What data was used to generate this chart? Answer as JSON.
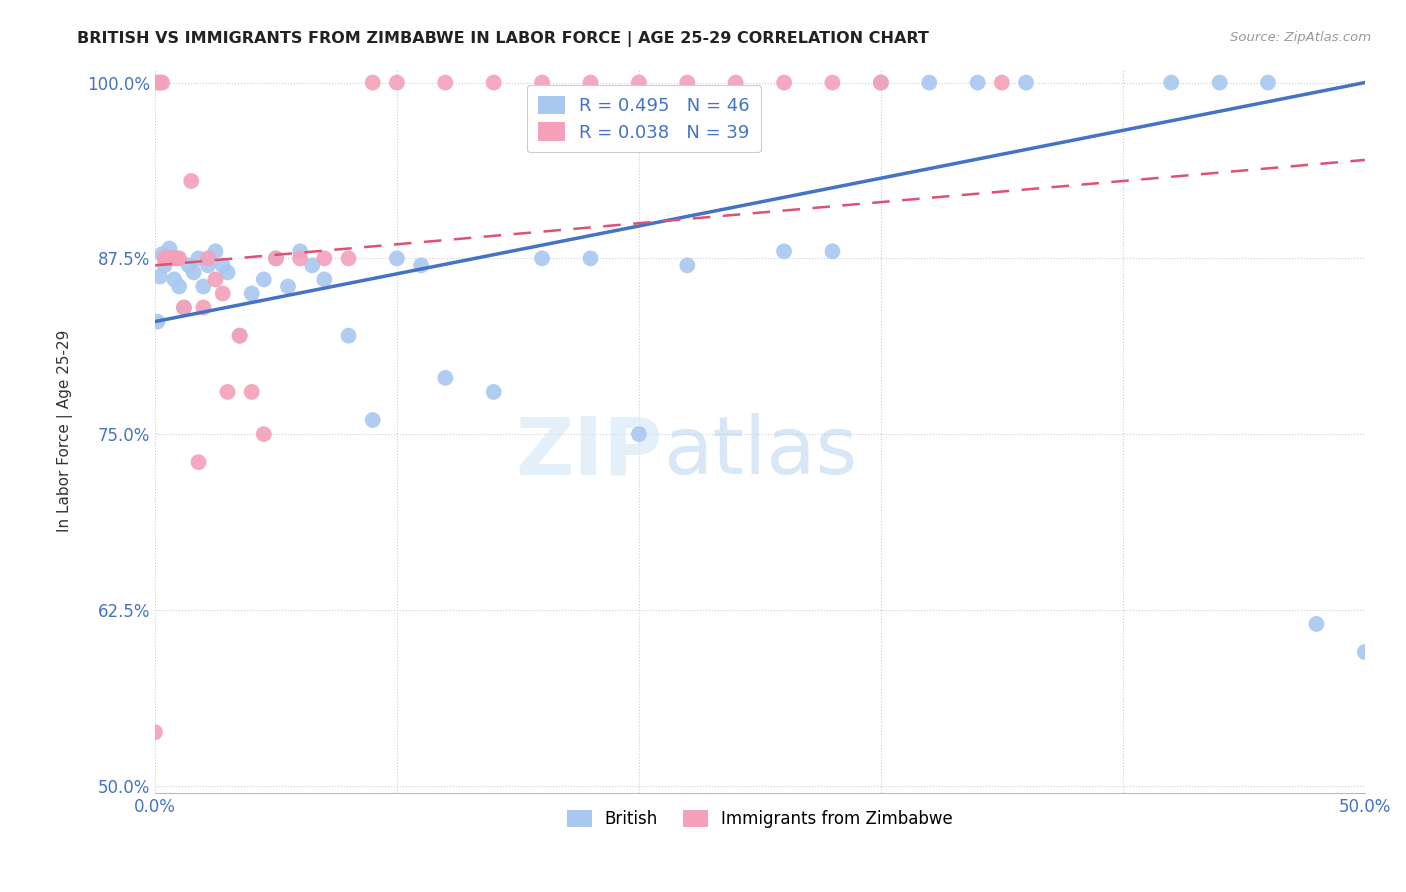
{
  "title": "BRITISH VS IMMIGRANTS FROM ZIMBABWE IN LABOR FORCE | AGE 25-29 CORRELATION CHART",
  "source": "Source: ZipAtlas.com",
  "ylabel": "In Labor Force | Age 25-29",
  "xlim": [
    0.0,
    0.5
  ],
  "ylim": [
    0.495,
    1.01
  ],
  "xticks": [
    0.0,
    0.1,
    0.2,
    0.3,
    0.4,
    0.5
  ],
  "xticklabels": [
    "0.0%",
    "",
    "",
    "",
    "",
    "50.0%"
  ],
  "yticks": [
    0.5,
    0.625,
    0.75,
    0.875,
    1.0
  ],
  "yticklabels": [
    "50.0%",
    "62.5%",
    "75.0%",
    "87.5%",
    "100.0%"
  ],
  "british_color": "#A8C8F0",
  "zimbabwe_color": "#F4A0B8",
  "british_R": 0.495,
  "british_N": 46,
  "zimbabwe_R": 0.038,
  "zimbabwe_N": 39,
  "british_line_color": "#4472C4",
  "zimbabwe_line_color": "#E05070",
  "legend_R_color": "#4472C4",
  "watermark_left": "ZIP",
  "watermark_right": "atlas",
  "british_x": [
    0.001,
    0.002,
    0.003,
    0.004,
    0.005,
    0.006,
    0.008,
    0.01,
    0.012,
    0.014,
    0.016,
    0.018,
    0.02,
    0.022,
    0.025,
    0.028,
    0.03,
    0.035,
    0.04,
    0.045,
    0.05,
    0.055,
    0.06,
    0.065,
    0.07,
    0.08,
    0.09,
    0.1,
    0.11,
    0.12,
    0.14,
    0.16,
    0.18,
    0.2,
    0.22,
    0.26,
    0.28,
    0.3,
    0.32,
    0.34,
    0.36,
    0.42,
    0.44,
    0.46,
    0.48,
    0.5
  ],
  "british_y": [
    0.83,
    0.862,
    0.878,
    0.87,
    0.875,
    0.882,
    0.86,
    0.855,
    0.84,
    0.87,
    0.865,
    0.875,
    0.855,
    0.87,
    0.88,
    0.87,
    0.865,
    0.82,
    0.85,
    0.86,
    0.875,
    0.855,
    0.88,
    0.87,
    0.86,
    0.82,
    0.76,
    0.875,
    0.87,
    0.79,
    0.78,
    0.875,
    0.875,
    0.75,
    0.87,
    0.88,
    0.88,
    1.0,
    1.0,
    1.0,
    1.0,
    1.0,
    1.0,
    1.0,
    0.615,
    0.595
  ],
  "zimbabwe_x": [
    0.0,
    0.001,
    0.002,
    0.003,
    0.004,
    0.005,
    0.006,
    0.007,
    0.008,
    0.009,
    0.01,
    0.012,
    0.015,
    0.018,
    0.02,
    0.022,
    0.025,
    0.028,
    0.03,
    0.035,
    0.04,
    0.045,
    0.05,
    0.06,
    0.07,
    0.08,
    0.09,
    0.1,
    0.12,
    0.14,
    0.16,
    0.18,
    0.2,
    0.22,
    0.24,
    0.26,
    0.28,
    0.3,
    0.35
  ],
  "zimbabwe_y": [
    0.538,
    1.0,
    1.0,
    1.0,
    0.875,
    0.875,
    0.875,
    0.875,
    0.875,
    0.875,
    0.875,
    0.84,
    0.93,
    0.73,
    0.84,
    0.875,
    0.86,
    0.85,
    0.78,
    0.82,
    0.78,
    0.75,
    0.875,
    0.875,
    0.875,
    0.875,
    1.0,
    1.0,
    1.0,
    1.0,
    1.0,
    1.0,
    1.0,
    1.0,
    1.0,
    1.0,
    1.0,
    1.0,
    1.0
  ]
}
